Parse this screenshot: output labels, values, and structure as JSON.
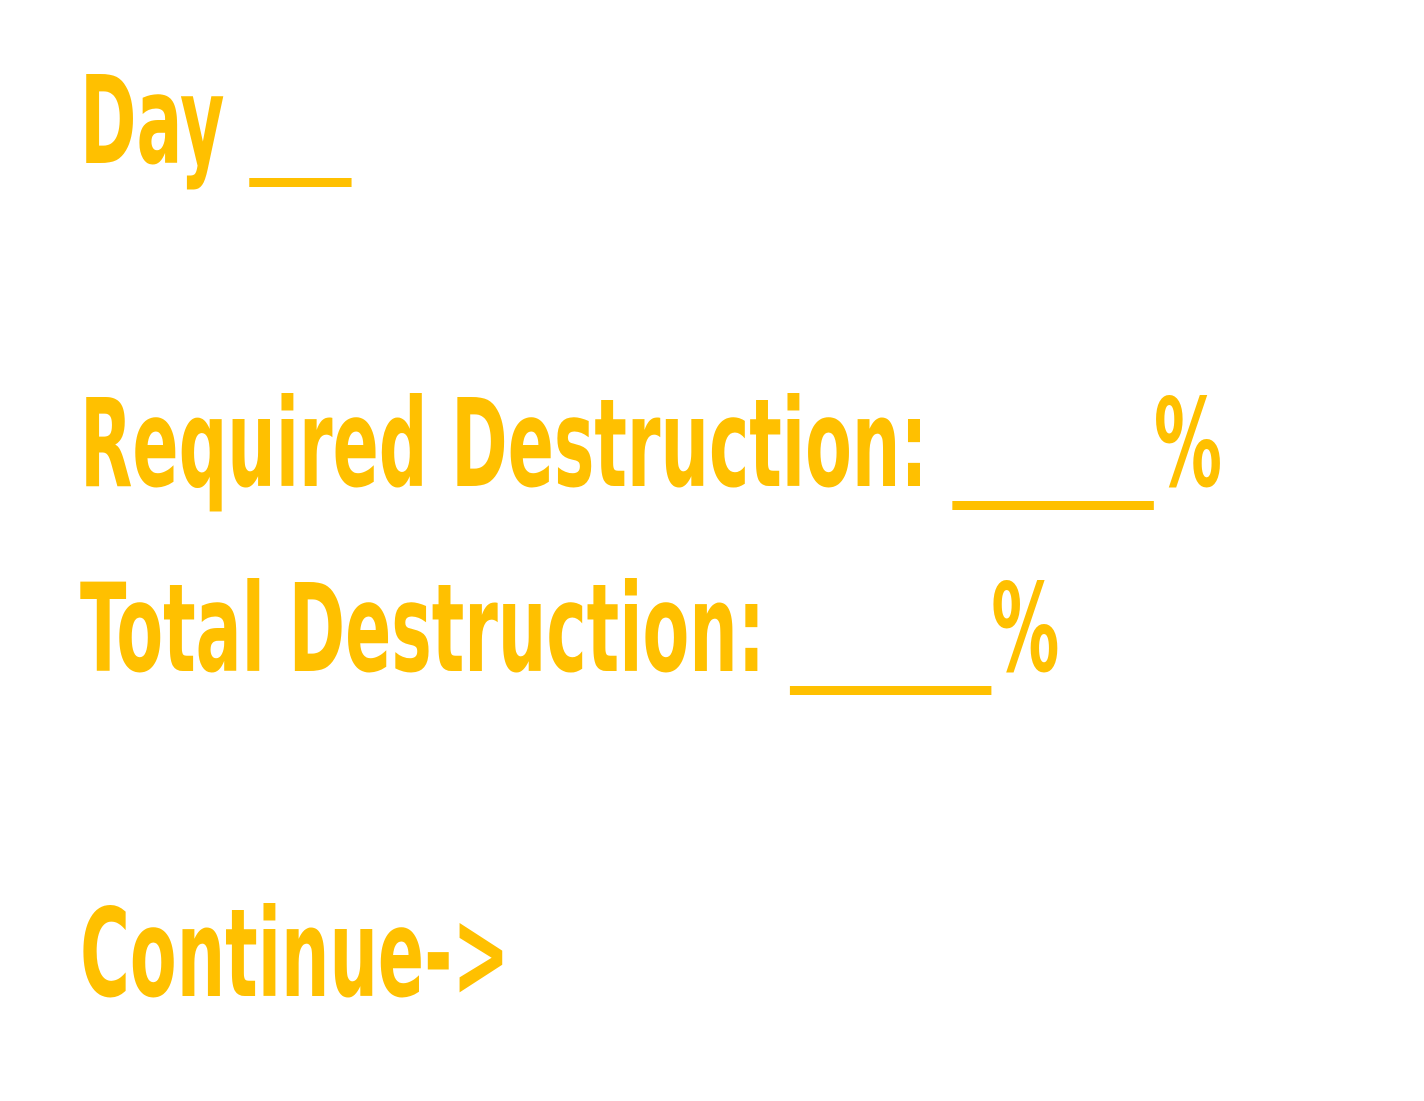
{
  "colors": {
    "text": "#ffc000",
    "background": "#ffffff"
  },
  "day": {
    "label": "Day",
    "value": ""
  },
  "required_destruction": {
    "label": "Required Destruction:",
    "value": "",
    "unit": "%"
  },
  "total_destruction": {
    "label": "Total Destruction:",
    "value": "",
    "unit": "%"
  },
  "continue_button": {
    "label": "Continue->"
  }
}
